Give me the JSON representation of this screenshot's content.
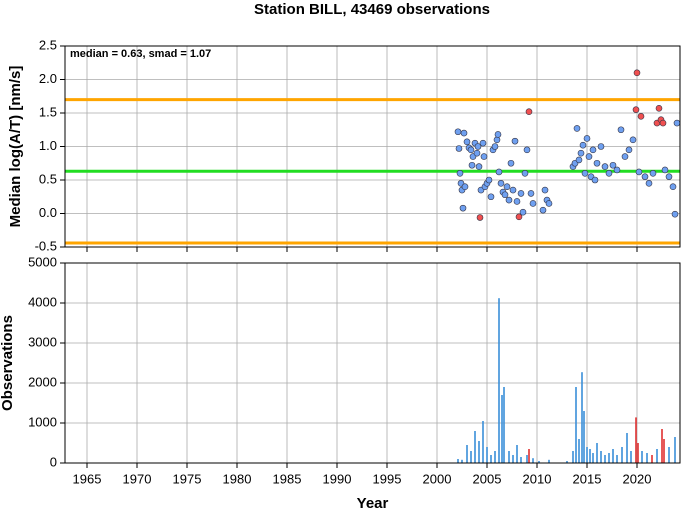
{
  "title": "Station BILL, 43469 observations",
  "chart_data": [
    {
      "type": "scatter",
      "annotation": "median = 0.63, smad = 1.07",
      "ylabel": "Median log(A/T) [nm/s]",
      "xlim": [
        1962.8,
        2024.3
      ],
      "xticks": [
        1965,
        1970,
        1975,
        1980,
        1985,
        1990,
        1995,
        2000,
        2005,
        2010,
        2015,
        2020
      ],
      "ylim": [
        -0.5,
        2.5
      ],
      "yticks": [
        -0.5,
        {
          "value": 0,
          "label": "0.0"
        },
        0.5,
        {
          "value": 1,
          "label": "1.0"
        },
        1.5,
        {
          "value": 2,
          "label": "2.0"
        },
        2.5
      ],
      "grid": true,
      "hlines": [
        {
          "value": 1.7,
          "color": "#ffa500"
        },
        {
          "value": 0.63,
          "color": "#22dd22"
        },
        {
          "value": -0.44,
          "color": "#ffa500"
        }
      ],
      "x": [
        2002.1,
        2002.2,
        2002.3,
        2002.4,
        2002.5,
        2002.6,
        2002.7,
        2002.8,
        2003.0,
        2003.2,
        2003.4,
        2003.5,
        2003.6,
        2003.8,
        2004.0,
        2004.1,
        2004.2,
        2004.3,
        2004.4,
        2004.6,
        2004.7,
        2004.8,
        2005.0,
        2005.2,
        2005.4,
        2005.6,
        2005.8,
        2006.0,
        2006.1,
        2006.2,
        2006.4,
        2006.6,
        2006.8,
        2007.0,
        2007.2,
        2007.4,
        2007.6,
        2007.8,
        2008.0,
        2008.2,
        2008.4,
        2008.6,
        2008.8,
        2009.0,
        2009.2,
        2009.4,
        2009.6,
        2010.6,
        2010.8,
        2011.0,
        2011.2,
        2013.6,
        2013.8,
        2014.0,
        2014.2,
        2014.4,
        2014.6,
        2014.8,
        2015.0,
        2015.2,
        2015.4,
        2015.6,
        2015.8,
        2016.0,
        2016.4,
        2016.8,
        2017.2,
        2017.6,
        2018.0,
        2018.4,
        2018.8,
        2019.2,
        2019.6,
        2019.9,
        2020.0,
        2020.2,
        2020.4,
        2020.8,
        2021.2,
        2021.6,
        2022.0,
        2022.2,
        2022.4,
        2022.6,
        2022.8,
        2023.2,
        2023.6,
        2023.8,
        2024.0
      ],
      "values": [
        1.22,
        0.97,
        0.6,
        0.45,
        0.35,
        0.08,
        1.2,
        0.4,
        1.07,
        0.98,
        0.95,
        0.72,
        0.85,
        1.05,
        0.9,
        1.0,
        0.7,
        -0.06,
        0.35,
        1.05,
        0.85,
        0.4,
        0.45,
        0.5,
        0.25,
        0.95,
        1.0,
        1.1,
        1.18,
        0.62,
        0.45,
        0.32,
        0.28,
        0.4,
        0.2,
        0.75,
        0.35,
        1.08,
        0.18,
        -0.05,
        0.3,
        0.02,
        0.6,
        0.95,
        1.52,
        0.3,
        0.15,
        0.05,
        0.35,
        0.2,
        0.15,
        0.7,
        0.75,
        1.27,
        0.8,
        0.9,
        1.02,
        0.6,
        1.12,
        0.85,
        0.55,
        0.95,
        0.5,
        0.75,
        1.0,
        0.7,
        0.6,
        0.72,
        0.65,
        1.25,
        0.85,
        0.95,
        1.1,
        1.55,
        2.1,
        0.62,
        1.45,
        0.55,
        0.45,
        0.6,
        1.35,
        1.57,
        1.4,
        1.35,
        0.65,
        0.55,
        0.4,
        -0.01,
        1.35
      ],
      "colors": [
        "#6fa0f0",
        "#6fa0f0",
        "#6fa0f0",
        "#6fa0f0",
        "#6fa0f0",
        "#6fa0f0",
        "#6fa0f0",
        "#6fa0f0",
        "#6fa0f0",
        "#6fa0f0",
        "#6fa0f0",
        "#6fa0f0",
        "#6fa0f0",
        "#6fa0f0",
        "#6fa0f0",
        "#6fa0f0",
        "#6fa0f0",
        "#f05050",
        "#6fa0f0",
        "#6fa0f0",
        "#6fa0f0",
        "#6fa0f0",
        "#6fa0f0",
        "#6fa0f0",
        "#6fa0f0",
        "#6fa0f0",
        "#6fa0f0",
        "#6fa0f0",
        "#6fa0f0",
        "#6fa0f0",
        "#6fa0f0",
        "#6fa0f0",
        "#6fa0f0",
        "#6fa0f0",
        "#6fa0f0",
        "#6fa0f0",
        "#6fa0f0",
        "#6fa0f0",
        "#6fa0f0",
        "#f05050",
        "#6fa0f0",
        "#6fa0f0",
        "#6fa0f0",
        "#6fa0f0",
        "#f05050",
        "#6fa0f0",
        "#6fa0f0",
        "#6fa0f0",
        "#6fa0f0",
        "#6fa0f0",
        "#6fa0f0",
        "#6fa0f0",
        "#6fa0f0",
        "#6fa0f0",
        "#6fa0f0",
        "#6fa0f0",
        "#6fa0f0",
        "#6fa0f0",
        "#6fa0f0",
        "#6fa0f0",
        "#6fa0f0",
        "#6fa0f0",
        "#6fa0f0",
        "#6fa0f0",
        "#6fa0f0",
        "#6fa0f0",
        "#6fa0f0",
        "#6fa0f0",
        "#6fa0f0",
        "#6fa0f0",
        "#6fa0f0",
        "#6fa0f0",
        "#6fa0f0",
        "#f05050",
        "#f05050",
        "#6fa0f0",
        "#f05050",
        "#6fa0f0",
        "#6fa0f0",
        "#6fa0f0",
        "#f05050",
        "#f05050",
        "#f05050",
        "#f05050",
        "#6fa0f0",
        "#6fa0f0",
        "#6fa0f0",
        "#6fa0f0",
        "#6fa0f0"
      ]
    },
    {
      "type": "bar",
      "xlabel": "Year",
      "ylabel": "Observations",
      "xlim": [
        1962.8,
        2024.3
      ],
      "xticks": [
        1965,
        1970,
        1975,
        1980,
        1985,
        1990,
        1995,
        2000,
        2005,
        2010,
        2015,
        2020
      ],
      "ylim": [
        0,
        5000
      ],
      "yticks": [
        0,
        1000,
        2000,
        3000,
        4000,
        5000
      ],
      "grid": true,
      "x": [
        2002.1,
        2002.5,
        2003.0,
        2003.4,
        2003.8,
        2004.2,
        2004.6,
        2005.0,
        2005.4,
        2005.8,
        2006.2,
        2006.5,
        2006.7,
        2007.2,
        2007.6,
        2008.0,
        2008.4,
        2009.0,
        2009.2,
        2009.6,
        2010.2,
        2011.2,
        2013.0,
        2013.6,
        2013.9,
        2014.2,
        2014.5,
        2014.7,
        2015.0,
        2015.3,
        2015.6,
        2016.0,
        2016.4,
        2016.8,
        2017.2,
        2017.6,
        2018.0,
        2018.5,
        2019.0,
        2019.4,
        2019.9,
        2020.1,
        2020.5,
        2021.0,
        2021.5,
        2022.0,
        2022.5,
        2022.7,
        2023.2,
        2023.8
      ],
      "values": [
        100,
        80,
        450,
        300,
        800,
        550,
        1050,
        400,
        200,
        300,
        4120,
        1700,
        1900,
        300,
        200,
        450,
        150,
        200,
        350,
        120,
        50,
        80,
        50,
        300,
        1900,
        600,
        2270,
        1300,
        400,
        350,
        250,
        500,
        300,
        200,
        250,
        350,
        200,
        400,
        750,
        300,
        1140,
        500,
        300,
        250,
        200,
        350,
        850,
        600,
        400,
        650
      ],
      "colors": [
        "#3a8fd9",
        "#3a8fd9",
        "#3a8fd9",
        "#3a8fd9",
        "#3a8fd9",
        "#3a8fd9",
        "#3a8fd9",
        "#3a8fd9",
        "#3a8fd9",
        "#3a8fd9",
        "#3a8fd9",
        "#3a8fd9",
        "#3a8fd9",
        "#3a8fd9",
        "#3a8fd9",
        "#3a8fd9",
        "#3a8fd9",
        "#3a8fd9",
        "#e03030",
        "#3a8fd9",
        "#3a8fd9",
        "#3a8fd9",
        "#3a8fd9",
        "#3a8fd9",
        "#3a8fd9",
        "#3a8fd9",
        "#3a8fd9",
        "#3a8fd9",
        "#3a8fd9",
        "#3a8fd9",
        "#3a8fd9",
        "#3a8fd9",
        "#3a8fd9",
        "#3a8fd9",
        "#3a8fd9",
        "#3a8fd9",
        "#3a8fd9",
        "#3a8fd9",
        "#3a8fd9",
        "#3a8fd9",
        "#e03030",
        "#e03030",
        "#3a8fd9",
        "#3a8fd9",
        "#e03030",
        "#3a8fd9",
        "#e03030",
        "#e03030",
        "#3a8fd9",
        "#3a8fd9"
      ]
    }
  ]
}
